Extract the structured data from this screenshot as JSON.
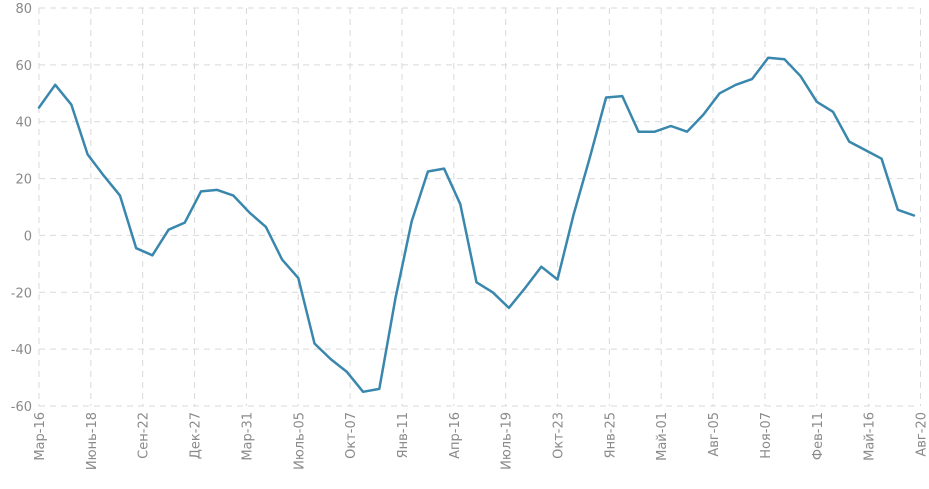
{
  "chart_data": {
    "type": "line",
    "title": "",
    "xlabel": "",
    "ylabel": "",
    "ylim": [
      -60,
      80
    ],
    "y_ticks": [
      80,
      60,
      40,
      20,
      0,
      -20,
      -40,
      -60
    ],
    "y_tick_labels": [
      "80",
      "60",
      "40",
      "20",
      "0",
      "-20",
      "-40",
      "-60"
    ],
    "x_tick_labels": [
      "Мар-16",
      "Июнь-18",
      "Сен-22",
      "Дек-27",
      "Мар-31",
      "Июль-05",
      "Окт-07",
      "Янв-11",
      "Апр-16",
      "Июль-19",
      "Окт-23",
      "Янв-25",
      "Май-01",
      "Авг-05",
      "Ноя-07",
      "Фев-11",
      "Май-16",
      "Авг-20"
    ],
    "x_tick_index": [
      0,
      3.2,
      6.4,
      9.6,
      12.8,
      16,
      19.2,
      22.4,
      25.6,
      28.8,
      32,
      35.2,
      38.4,
      41.6,
      44.8,
      48,
      51.2,
      54.4
    ],
    "grid": true,
    "legend": "none",
    "line_color": "#3a87ad",
    "series": [
      {
        "values": [
          45,
          53,
          46,
          28.5,
          21,
          14,
          -4.5,
          -7,
          2,
          4.5,
          15.5,
          16,
          14,
          8,
          3,
          -8.5,
          -15,
          -38,
          -43.5,
          -48,
          -55,
          -54,
          -22,
          5,
          22.5,
          23.5,
          11,
          -16.5,
          -20,
          -25.5,
          -18.5,
          -11,
          -15.5,
          7.5,
          27.5,
          48.5,
          49,
          36.5,
          36.5,
          38.5,
          36.5,
          42.5,
          50,
          53,
          55,
          62.5,
          62,
          56,
          47,
          43.5,
          33,
          30,
          27,
          9,
          7
        ]
      }
    ]
  }
}
